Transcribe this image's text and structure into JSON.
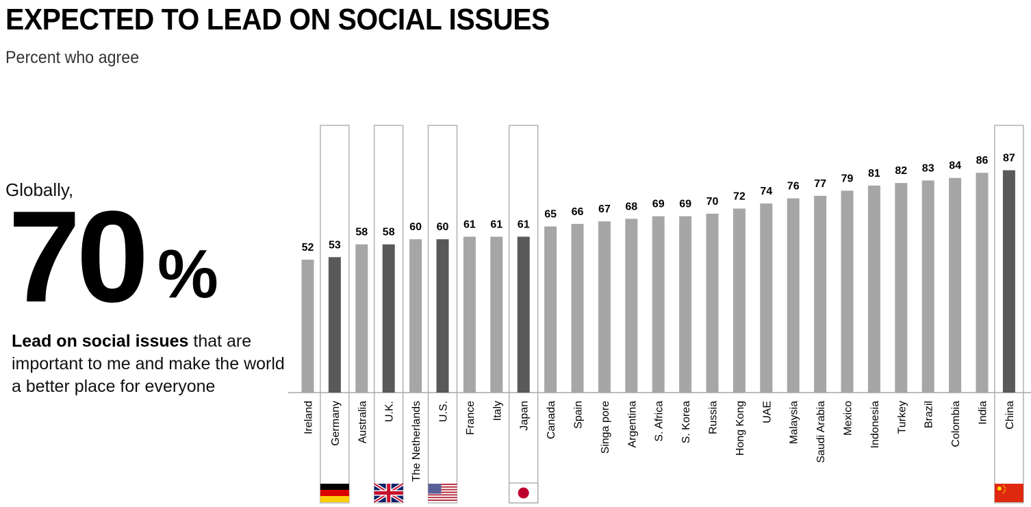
{
  "header": {
    "title": "EXPECTED TO LEAD ON SOCIAL ISSUES",
    "subtitle": "Percent who agree"
  },
  "callout": {
    "prefix": "Globally,",
    "number": "70",
    "unit": "%",
    "statement_bold": "Lead on social issues",
    "statement_rest": " that are important to me and make the world a better place for everyone"
  },
  "colors": {
    "bar_default": "#a6a6a6",
    "bar_highlight": "#595959",
    "box_border": "#a6a6a6",
    "axis": "#a6a6a6"
  },
  "chart_data": {
    "type": "bar",
    "title": "EXPECTED TO LEAD ON SOCIAL ISSUES",
    "subtitle": "Percent who agree",
    "xlabel": "",
    "ylabel": "",
    "ylim": [
      0,
      100
    ],
    "grid": false,
    "legend": "none",
    "categories": [
      "Ireland",
      "Germany",
      "Australia",
      "U.K.",
      "The Netherlands",
      "U.S.",
      "France",
      "Italy",
      "Japan",
      "Canada",
      "Spain",
      "Singa pore",
      "Argentina",
      "S. Africa",
      "S. Korea",
      "Russia",
      "Hong Kong",
      "UAE",
      "Malaysia",
      "Saudi Arabia",
      "Mexico",
      "Indonesia",
      "Turkey",
      "Brazil",
      "Colombia",
      "India",
      "China"
    ],
    "values": [
      52,
      53,
      58,
      58,
      60,
      60,
      61,
      61,
      61,
      65,
      66,
      67,
      68,
      69,
      69,
      70,
      72,
      74,
      76,
      77,
      79,
      81,
      82,
      83,
      84,
      86,
      87
    ],
    "highlighted": [
      "Germany",
      "U.K.",
      "U.S.",
      "Japan",
      "China"
    ],
    "flags": {
      "Germany": "germany-flag",
      "U.K.": "uk-flag",
      "U.S.": "us-flag",
      "Japan": "japan-flag",
      "China": "china-flag"
    },
    "global_average": 70
  }
}
